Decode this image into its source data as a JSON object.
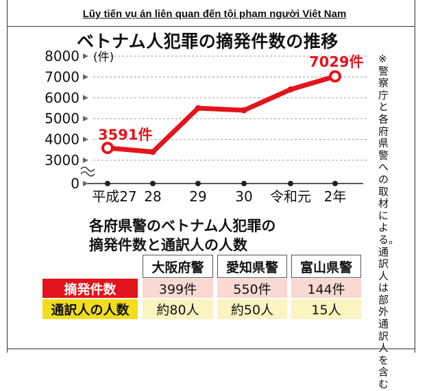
{
  "caption": "Lũy tiến vụ án liên quan đến tội phạm người Việt Nam",
  "chart_title": "ベトナム人犯罪の摘発件数の推移",
  "note": "※警察庁と各府県警への取材による。通訳人は部外通訳人を含む",
  "chart_data": {
    "type": "line",
    "title": "ベトナム人犯罪の摘発件数の推移",
    "x": [
      "平成27",
      "28",
      "29",
      "30",
      "令和元",
      "2年"
    ],
    "values": [
      3591,
      3400,
      5500,
      5400,
      6400,
      7029
    ],
    "y_unit": "(件)",
    "y_ticks": [
      "8000",
      "7000",
      "6000",
      "5000",
      "4000",
      "3000",
      "0"
    ],
    "ylim": [
      3000,
      8000
    ],
    "axis_break": true,
    "grid": "dashed horizontal",
    "line_color": "#e3141b",
    "labels": [
      {
        "index": 0,
        "text": "3591件"
      },
      {
        "index": 5,
        "text": "7029件"
      }
    ]
  },
  "table": {
    "title_line1": "各府県警のベトナム人犯罪の",
    "title_line2": "摘発件数と通訳人の人数",
    "columns": [
      "大阪府警",
      "愛知県警",
      "富山県警"
    ],
    "rows": [
      {
        "label": "摘発件数",
        "cells": [
          "399件",
          "550件",
          "144件"
        ]
      },
      {
        "label": "通訳人の人数",
        "cells": [
          "約80人",
          "約50人",
          "15人"
        ]
      }
    ]
  },
  "colors": {
    "accent_red": "#e3141b",
    "accent_yellow": "#f2dd1c",
    "row1_fill": "#f9d9d2",
    "row2_fill": "#fbf3c0"
  }
}
